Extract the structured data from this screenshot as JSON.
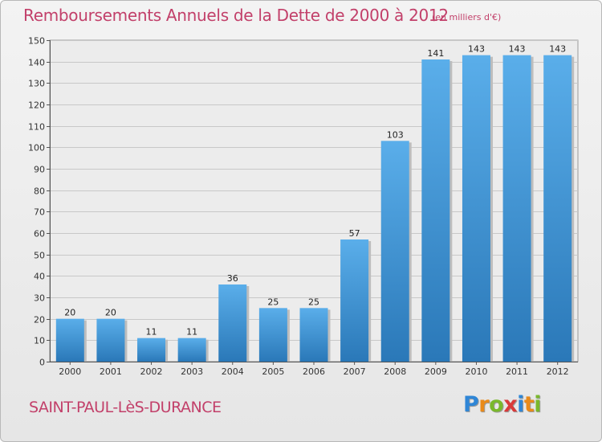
{
  "chart_data": {
    "type": "bar",
    "title": "Remboursements Annuels de la Dette de 2000 à 2012",
    "subtitle": "(en milliers d'€)",
    "categories": [
      "2000",
      "2001",
      "2002",
      "2003",
      "2004",
      "2005",
      "2006",
      "2007",
      "2008",
      "2009",
      "2010",
      "2011",
      "2012"
    ],
    "values": [
      20,
      20,
      11,
      11,
      36,
      25,
      25,
      57,
      103,
      141,
      143,
      143,
      143
    ],
    "ylim": [
      0,
      150
    ],
    "yticks": [
      0,
      10,
      20,
      30,
      40,
      50,
      60,
      70,
      80,
      90,
      100,
      110,
      120,
      130,
      140,
      150
    ],
    "grid": true,
    "legend": "none",
    "colors": {
      "bar_top": "#5aaeea",
      "bar_bottom": "#2a78b8",
      "title": "#c2406a"
    }
  },
  "footer": {
    "commune": "SAINT-PAUL-LèS-DURANCE",
    "logo_letters": [
      "P",
      "r",
      "o",
      "x",
      "i",
      "t",
      "i"
    ],
    "logo_colors": [
      "#2f86d6",
      "#e98a1a",
      "#7ab82c",
      "#d93a3a",
      "#2f86d6",
      "#e98a1a",
      "#7ab82c"
    ]
  }
}
